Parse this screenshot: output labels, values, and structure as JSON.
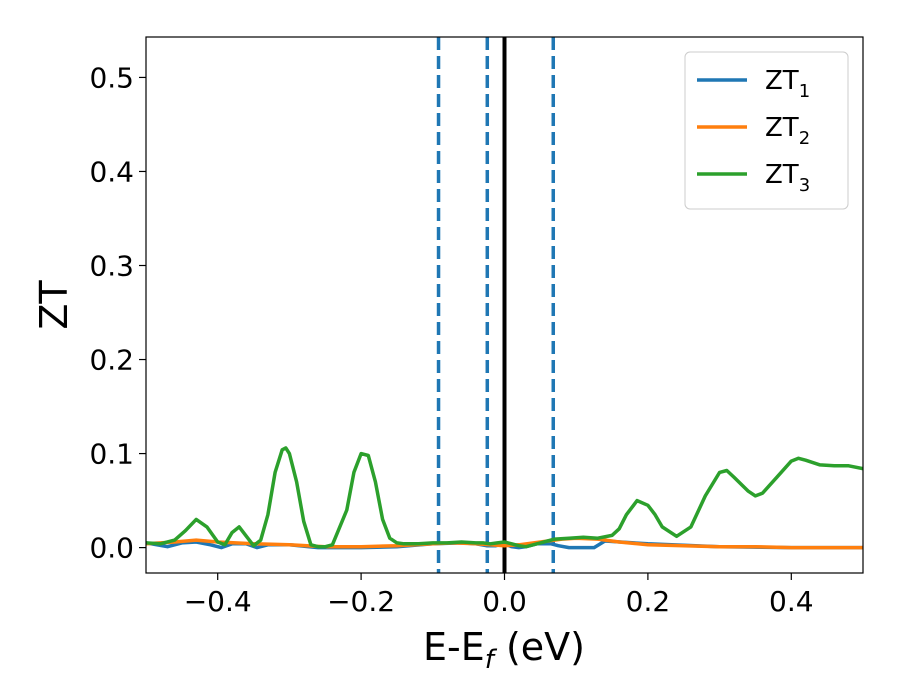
{
  "chart_data": {
    "type": "line",
    "xlabel": "E-E",
    "xlabel_sub": "f",
    "xlabel_unit": " (eV)",
    "ylabel": "ZT",
    "xlim": [
      -0.5,
      0.5
    ],
    "ylim": [
      -0.027,
      0.543
    ],
    "x_ticks": [
      -0.4,
      -0.2,
      0.0,
      0.2,
      0.4
    ],
    "x_tick_labels": [
      "−0.4",
      "−0.2",
      "0.0",
      "0.2",
      "0.4"
    ],
    "y_ticks": [
      0.0,
      0.1,
      0.2,
      0.3,
      0.4,
      0.5
    ],
    "y_tick_labels": [
      "0.0",
      "0.1",
      "0.2",
      "0.3",
      "0.4",
      "0.5"
    ],
    "grid": false,
    "legend_position": "top-right",
    "vertical_lines": [
      {
        "x": -0.092,
        "style": "dashed",
        "color": "#1f77b4"
      },
      {
        "x": -0.024,
        "style": "dashed",
        "color": "#1f77b4"
      },
      {
        "x": 0.0,
        "style": "solid",
        "color": "#000000"
      },
      {
        "x": 0.068,
        "style": "dashed",
        "color": "#1f77b4"
      }
    ],
    "series": [
      {
        "name": "ZT",
        "sub": "1",
        "color": "#1f77b4",
        "x": [
          -0.5,
          -0.47,
          -0.45,
          -0.43,
          -0.41,
          -0.395,
          -0.38,
          -0.36,
          -0.345,
          -0.33,
          -0.3,
          -0.26,
          -0.2,
          -0.15,
          -0.1,
          -0.06,
          -0.04,
          -0.025,
          -0.012,
          0.0,
          0.01,
          0.02,
          0.03,
          0.045,
          0.055,
          0.065,
          0.075,
          0.09,
          0.1,
          0.11,
          0.125,
          0.14,
          0.2,
          0.3,
          0.4,
          0.5
        ],
        "y": [
          0.005,
          0.001,
          0.005,
          0.006,
          0.003,
          0.0,
          0.004,
          0.004,
          0.0,
          0.003,
          0.003,
          0.0,
          0.0,
          0.001,
          0.004,
          0.005,
          0.004,
          0.002,
          0.002,
          0.004,
          0.001,
          0.0,
          0.001,
          0.004,
          0.004,
          0.004,
          0.002,
          0.0,
          0.0,
          0.0,
          0.0,
          0.007,
          0.004,
          0.001,
          0.0,
          0.0
        ]
      },
      {
        "name": "ZT",
        "sub": "2",
        "color": "#ff7f0e",
        "x": [
          -0.5,
          -0.46,
          -0.43,
          -0.4,
          -0.35,
          -0.3,
          -0.25,
          -0.2,
          -0.15,
          -0.1,
          -0.07,
          -0.04,
          -0.02,
          0.0,
          0.02,
          0.05,
          0.08,
          0.1,
          0.13,
          0.16,
          0.2,
          0.25,
          0.3,
          0.35,
          0.4,
          0.45,
          0.5
        ],
        "y": [
          0.004,
          0.006,
          0.008,
          0.006,
          0.004,
          0.003,
          0.001,
          0.001,
          0.002,
          0.004,
          0.005,
          0.004,
          0.003,
          0.002,
          0.003,
          0.006,
          0.009,
          0.01,
          0.009,
          0.006,
          0.003,
          0.002,
          0.001,
          0.001,
          0.0,
          0.0,
          0.0
        ]
      },
      {
        "name": "ZT",
        "sub": "3",
        "color": "#2ca02c",
        "x": [
          -0.5,
          -0.48,
          -0.46,
          -0.445,
          -0.43,
          -0.415,
          -0.4,
          -0.39,
          -0.38,
          -0.37,
          -0.36,
          -0.35,
          -0.34,
          -0.33,
          -0.32,
          -0.31,
          -0.305,
          -0.3,
          -0.29,
          -0.28,
          -0.27,
          -0.26,
          -0.25,
          -0.24,
          -0.22,
          -0.21,
          -0.2,
          -0.19,
          -0.18,
          -0.17,
          -0.16,
          -0.15,
          -0.14,
          -0.12,
          -0.1,
          -0.08,
          -0.06,
          -0.04,
          -0.03,
          -0.02,
          -0.01,
          0.0,
          0.01,
          0.02,
          0.03,
          0.04,
          0.05,
          0.06,
          0.07,
          0.09,
          0.11,
          0.13,
          0.15,
          0.16,
          0.17,
          0.185,
          0.2,
          0.21,
          0.22,
          0.24,
          0.26,
          0.28,
          0.3,
          0.31,
          0.32,
          0.34,
          0.35,
          0.36,
          0.38,
          0.4,
          0.41,
          0.42,
          0.44,
          0.46,
          0.48,
          0.5
        ],
        "y": [
          0.005,
          0.004,
          0.008,
          0.018,
          0.03,
          0.022,
          0.006,
          0.003,
          0.016,
          0.022,
          0.012,
          0.002,
          0.008,
          0.035,
          0.08,
          0.104,
          0.106,
          0.1,
          0.07,
          0.028,
          0.003,
          0.001,
          0.001,
          0.003,
          0.04,
          0.08,
          0.1,
          0.098,
          0.07,
          0.03,
          0.01,
          0.005,
          0.004,
          0.004,
          0.005,
          0.005,
          0.006,
          0.005,
          0.005,
          0.004,
          0.005,
          0.006,
          0.004,
          0.002,
          0.001,
          0.003,
          0.005,
          0.007,
          0.009,
          0.01,
          0.011,
          0.01,
          0.013,
          0.02,
          0.035,
          0.05,
          0.045,
          0.035,
          0.022,
          0.012,
          0.022,
          0.055,
          0.08,
          0.082,
          0.075,
          0.06,
          0.055,
          0.058,
          0.075,
          0.092,
          0.095,
          0.093,
          0.088,
          0.087,
          0.087,
          0.084
        ]
      }
    ]
  }
}
